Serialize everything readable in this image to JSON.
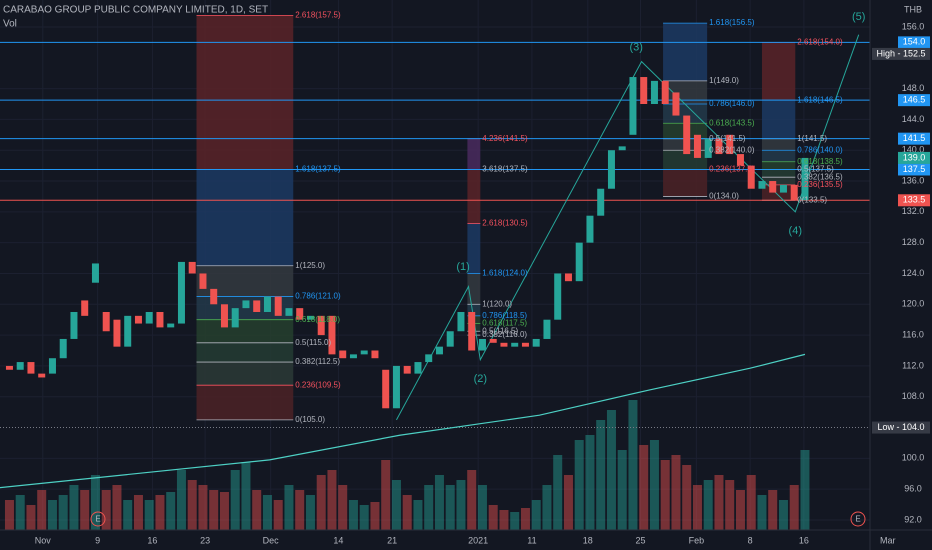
{
  "chart_data": {
    "type": "candlestick",
    "title": "CARABAO GROUP PUBLIC COMPANY LIMITED, 1D, SET",
    "subtitle": "Vol",
    "currency": "THB",
    "up_color": "#26a69a",
    "down_color": "#ef5350",
    "xlim": [
      -0.88,
      80.05
    ],
    "xticks": [
      {
        "value": 3.1,
        "label": "Nov"
      },
      {
        "value": 8.2,
        "label": "9"
      },
      {
        "value": 13.3,
        "label": "16"
      },
      {
        "value": 18.2,
        "label": "23"
      },
      {
        "value": 24.3,
        "label": "Dec"
      },
      {
        "value": 30.6,
        "label": "14"
      },
      {
        "value": 35.6,
        "label": "21"
      },
      {
        "value": 43.6,
        "label": "2021"
      },
      {
        "value": 48.6,
        "label": "11"
      },
      {
        "value": 53.8,
        "label": "18"
      },
      {
        "value": 58.7,
        "label": "25"
      },
      {
        "value": 63.9,
        "label": "Feb"
      },
      {
        "value": 68.9,
        "label": "8"
      },
      {
        "value": 73.9,
        "label": "16"
      },
      {
        "value": 81.7,
        "label": "Mar"
      }
    ],
    "ylim": [
      90.7,
      159.5
    ],
    "yticks": [
      {
        "value": 156,
        "label": "156.0"
      },
      {
        "value": 148,
        "label": "148.0"
      },
      {
        "value": 144,
        "label": "144.0"
      },
      {
        "value": 140,
        "label": "140.0"
      },
      {
        "value": 136,
        "label": "136.0"
      },
      {
        "value": 132,
        "label": "132.0"
      },
      {
        "value": 128,
        "label": "128.0"
      },
      {
        "value": 124,
        "label": "124.0"
      },
      {
        "value": 120,
        "label": "120.0"
      },
      {
        "value": 116,
        "label": "116.0"
      },
      {
        "value": 112,
        "label": "112.0"
      },
      {
        "value": 108,
        "label": "108.0"
      },
      {
        "value": 100,
        "label": "100.0"
      },
      {
        "value": 96,
        "label": "96.0"
      },
      {
        "value": 92,
        "label": "92.0"
      }
    ],
    "open": [
      112,
      111.5,
      112.5,
      111,
      111,
      113,
      115.5,
      120.5,
      122.8,
      119,
      118,
      114.5,
      118.5,
      117.5,
      119,
      117,
      117.5,
      125.5,
      124,
      122,
      120,
      117,
      119.5,
      120.5,
      119,
      121,
      118.5,
      119.5,
      118,
      118.5,
      118.5,
      114,
      113,
      113.5,
      114,
      111.5,
      106.5,
      112,
      111,
      112.5,
      113.5,
      114.5,
      116.5,
      119,
      114,
      115.5,
      115,
      114.5,
      115,
      114.5,
      115.5,
      118,
      124,
      123,
      128,
      131.5,
      135,
      140,
      142,
      149.5,
      146,
      149,
      147.5,
      144.5,
      142,
      139,
      141.5,
      142,
      139.5,
      138,
      135,
      136,
      134.5,
      135.5,
      133.5
    ],
    "high": {
      "value": 152.5,
      "label": "High - 152.5"
    },
    "low": {
      "value": 104.0,
      "label": "Low - 104.0"
    },
    "close": [
      111.5,
      112.5,
      111,
      110.5,
      113,
      115.5,
      119,
      118.5,
      125.3,
      116.5,
      114.5,
      118.5,
      117.5,
      119,
      117,
      117.5,
      125.5,
      124,
      122,
      120,
      117,
      119.5,
      120.5,
      119,
      121,
      118.5,
      119.5,
      118,
      118.5,
      116,
      113.5,
      113,
      113.5,
      114,
      113,
      106.5,
      112,
      111,
      112.5,
      113.5,
      114.5,
      116.5,
      119,
      114,
      115.5,
      115,
      114.5,
      115,
      114.5,
      115.5,
      118,
      124,
      123,
      128,
      131.5,
      135,
      140,
      140.5,
      149.5,
      146,
      149,
      146,
      144.5,
      139.5,
      139,
      141.5,
      139.5,
      139.5,
      138,
      135,
      136,
      134.5,
      135.5,
      133.5,
      139
    ],
    "volume": [
      30,
      35,
      25,
      40,
      30,
      35,
      45,
      40,
      55,
      40,
      45,
      30,
      35,
      30,
      35,
      38,
      60,
      50,
      45,
      40,
      38,
      60,
      68,
      40,
      35,
      30,
      45,
      40,
      35,
      55,
      60,
      45,
      30,
      25,
      28,
      70,
      50,
      35,
      30,
      45,
      55,
      45,
      50,
      60,
      45,
      25,
      20,
      18,
      22,
      30,
      45,
      75,
      55,
      90,
      95,
      110,
      120,
      80,
      130,
      85,
      90,
      70,
      75,
      65,
      45,
      50,
      55,
      50,
      40,
      55,
      35,
      40,
      30,
      45,
      80
    ],
    "vlim": [
      0,
      160
    ],
    "ma": {
      "color": "#4dd0c4",
      "x": [
        -0.88,
        24.2,
        36.3,
        49.3,
        59.6,
        68.9,
        74
      ],
      "values": [
        96.2,
        99.8,
        103,
        105.6,
        108.9,
        111.7,
        113.5
      ]
    },
    "hlines": [
      {
        "value": 154.0,
        "label": "154.0",
        "color": "#2196f3"
      },
      {
        "value": 146.5,
        "label": "146.5",
        "color": "#2196f3"
      },
      {
        "value": 141.5,
        "label": "141.5",
        "color": "#2196f3"
      },
      {
        "value": 137.5,
        "label": "137.5",
        "color": "#2196f3"
      },
      {
        "value": 133.5,
        "label": "133.5",
        "color": "#ef5350"
      }
    ],
    "last": {
      "value": 139.0,
      "label": "139.0",
      "color": "#26a69a"
    },
    "fibs": [
      {
        "x0": 17.4,
        "x1": 26.4,
        "levels": [
          {
            "value": 157.5,
            "label": "2.618(157.5)",
            "color": "#f7525f"
          },
          {
            "value": 137.5,
            "label": "1.618(137.5)",
            "color": "#2196f3"
          },
          {
            "value": 125.0,
            "label": "1(125.0)",
            "color": "#b2b5be"
          },
          {
            "value": 121.0,
            "label": "0.786(121.0)",
            "color": "#2196f3"
          },
          {
            "value": 118.0,
            "label": "0.618(118.0)",
            "color": "#4caf50"
          },
          {
            "value": 115.0,
            "label": "0.5(115.0)",
            "color": "#b2b5be"
          },
          {
            "value": 112.5,
            "label": "0.382(112.5)",
            "color": "#b2b5be"
          },
          {
            "value": 109.5,
            "label": "0.236(109.5)",
            "color": "#f7525f"
          },
          {
            "value": 105.0,
            "label": "0(105.0)",
            "color": "#b2b5be"
          }
        ],
        "bands": [
          "#5a2328",
          "#1c3a63",
          "#343a40",
          "#23394a",
          "#26402e",
          "#243c33",
          "#2c3a36",
          "#4c2226"
        ]
      },
      {
        "x0": 42.6,
        "x1": 43.8,
        "levels": [
          {
            "value": 141.5,
            "label": "4.236(141.5)",
            "color": "#f7525f"
          },
          {
            "value": 137.5,
            "label": "3.618(137.5)",
            "color": "#b2b5be"
          },
          {
            "value": 130.5,
            "label": "2.618(130.5)",
            "color": "#f7525f"
          },
          {
            "value": 124.0,
            "label": "1.618(124.0)",
            "color": "#2196f3"
          },
          {
            "value": 120.0,
            "label": "1(120.0)",
            "color": "#b2b5be"
          },
          {
            "value": 118.5,
            "label": "0.786(118.5)",
            "color": "#2196f3"
          },
          {
            "value": 117.5,
            "label": "0.618(117.5)",
            "color": "#4caf50"
          },
          {
            "value": 116.5,
            "label": "0.5(116.5)",
            "color": "#b2b5be"
          },
          {
            "value": 116.0,
            "label": "0.382(116.0)",
            "color": "#b2b5be"
          }
        ],
        "bands": [
          "#4a2a5e",
          "#5a2328",
          "#1c3a63",
          "#343a40",
          "#23394a",
          "#26402e",
          "#243c33"
        ]
      },
      {
        "x0": 60.8,
        "x1": 64.9,
        "levels": [
          {
            "value": 156.5,
            "label": "1.618(156.5)",
            "color": "#2196f3"
          },
          {
            "value": 149.0,
            "label": "1(149.0)",
            "color": "#b2b5be"
          },
          {
            "value": 146.0,
            "label": "0.786(146.0)",
            "color": "#2196f3"
          },
          {
            "value": 143.5,
            "label": "0.618(143.5)",
            "color": "#4caf50"
          },
          {
            "value": 141.5,
            "label": "0.5(141.5)",
            "color": "#b2b5be"
          },
          {
            "value": 140.0,
            "label": "0.382(140.0)",
            "color": "#b2b5be"
          },
          {
            "value": 137.5,
            "label": "0.236(137.5)",
            "color": "#f7525f"
          },
          {
            "value": 134.0,
            "label": "0(134.0)",
            "color": "#b2b5be"
          }
        ],
        "bands": [
          "#1c3a63",
          "#343a40",
          "#23394a",
          "#26402e",
          "#343a40",
          "#243c33",
          "#4c2226"
        ]
      },
      {
        "x0": 70.0,
        "x1": 73.1,
        "levels": [
          {
            "value": 154.0,
            "label": "2.618(154.0)",
            "color": "#f7525f"
          },
          {
            "value": 146.5,
            "label": "1.618(146.5)",
            "color": "#2196f3"
          },
          {
            "value": 141.5,
            "label": "1(141.5)",
            "color": "#b2b5be"
          },
          {
            "value": 140.0,
            "label": "0.786(140.0)",
            "color": "#2196f3"
          },
          {
            "value": 138.5,
            "label": "0.618(138.5)",
            "color": "#4caf50"
          },
          {
            "value": 137.5,
            "label": "0.5(137.5)",
            "color": "#b2b5be"
          },
          {
            "value": 136.5,
            "label": "0.382(136.5)",
            "color": "#b2b5be"
          },
          {
            "value": 135.5,
            "label": "0.236(135.5)",
            "color": "#f7525f"
          },
          {
            "value": 133.5,
            "label": "0(133.5)",
            "color": "#b2b5be"
          }
        ],
        "bands": [
          "#5a2328",
          "#1c3a63",
          "#343a40",
          "#23394a",
          "#26402e",
          "#243c33",
          "#2c3a36",
          "#4c2226"
        ]
      }
    ],
    "wave_path": {
      "color": "#26a69a",
      "x": [
        36,
        42.7,
        43.8,
        58.8,
        73.1,
        79
      ],
      "values": [
        105,
        122.3,
        112.8,
        151.5,
        132,
        155
      ]
    },
    "waves": [
      {
        "label": "(1)",
        "x": 42.2,
        "value": 124.8
      },
      {
        "label": "(2)",
        "x": 43.8,
        "value": 110.3
      },
      {
        "label": "(3)",
        "x": 58.3,
        "value": 153.3
      },
      {
        "label": "(4)",
        "x": 73.1,
        "value": 129.5
      },
      {
        "label": "(5)",
        "x": 79,
        "value": 157.3
      }
    ]
  }
}
